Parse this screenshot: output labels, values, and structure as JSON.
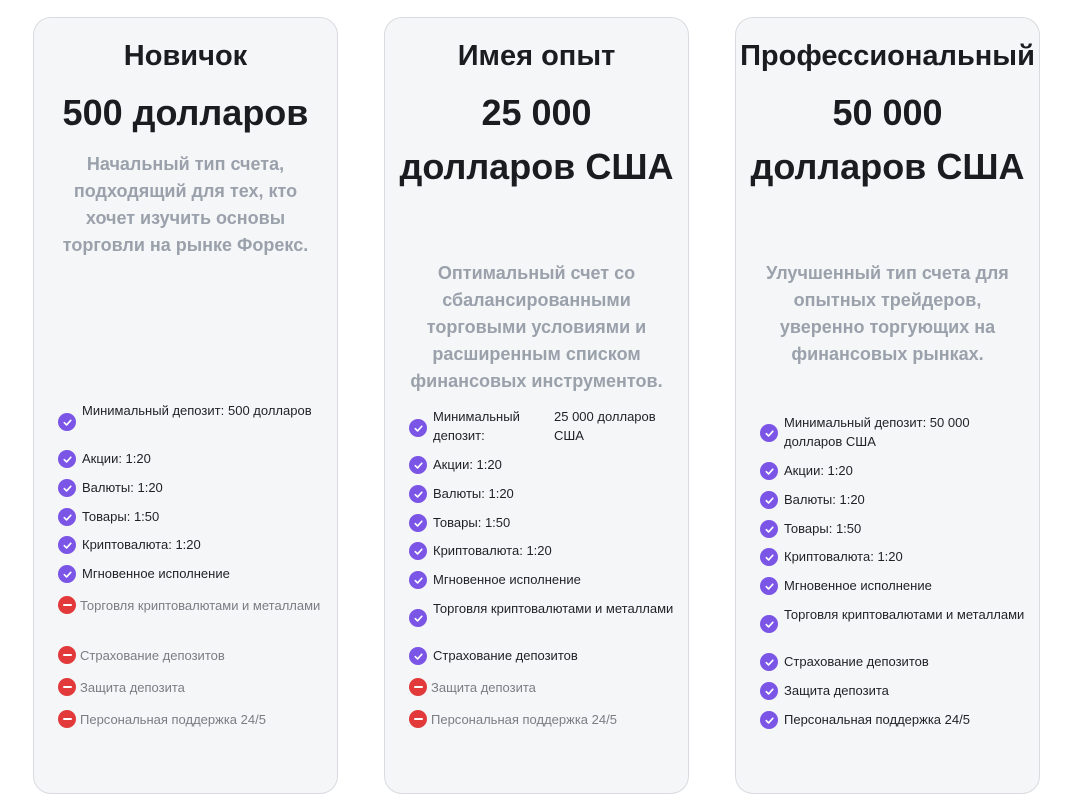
{
  "plans": [
    {
      "title": "Новичок",
      "price": "500 долларов",
      "description": "Начальный тип счета, подходящий для тех, кто хочет изучить основы торговли на рынке Форекс.",
      "min_deposit_label": "Минимальный депозит:",
      "min_deposit_value": "500 долларов",
      "features": [
        {
          "label": "Акции: 1:20",
          "included": true
        },
        {
          "label": "Валюты: 1:20",
          "included": true
        },
        {
          "label": "Товары: 1:50",
          "included": true
        },
        {
          "label": "Криптовалюта: 1:20",
          "included": true
        },
        {
          "label": "Мгновенное исполнение",
          "included": true
        },
        {
          "label": "Торговля криптовалютами и металлами",
          "included": false
        },
        {
          "label": "Страхование депозитов",
          "included": false
        },
        {
          "label": "Защита депозита",
          "included": false
        },
        {
          "label": "Персональная поддержка 24/5",
          "included": false
        }
      ]
    },
    {
      "title": "Имея опыт",
      "price": "25 000 долларов США",
      "description": "Оптимальный счет со сбалансированными торговыми условиями и расширенным списком финансовых инструментов.",
      "min_deposit_label": "Минимальный депозит:",
      "min_deposit_value": "25 000 долларов США",
      "features": [
        {
          "label": "Акции: 1:20",
          "included": true
        },
        {
          "label": "Валюты: 1:20",
          "included": true
        },
        {
          "label": "Товары: 1:50",
          "included": true
        },
        {
          "label": "Криптовалюта: 1:20",
          "included": true
        },
        {
          "label": "Мгновенное исполнение",
          "included": true
        },
        {
          "label": "Торговля криптовалютами и металлами",
          "included": true
        },
        {
          "label": "Страхование депозитов",
          "included": true
        },
        {
          "label": "Защита депозита",
          "included": false
        },
        {
          "label": "Персональная поддержка 24/5",
          "included": false
        }
      ]
    },
    {
      "title": "Профессиональный",
      "price": "50 000 долларов США",
      "description": "Улучшенный тип счета для опытных трейдеров, уверенно торгующих на финансовых рынках.",
      "min_deposit_text": "Минимальный депозит: 50 000 долларов США",
      "features": [
        {
          "label": "Акции: 1:20",
          "included": true
        },
        {
          "label": "Валюты: 1:20",
          "included": true
        },
        {
          "label": "Товары: 1:50",
          "included": true
        },
        {
          "label": "Криптовалюта: 1:20",
          "included": true
        },
        {
          "label": "Мгновенное исполнение",
          "included": true
        },
        {
          "label": "Торговля криптовалютами и металлами",
          "included": true
        },
        {
          "label": "Страхование депозитов",
          "included": true
        },
        {
          "label": "Защита депозита",
          "included": true
        },
        {
          "label": "Персональная поддержка 24/5",
          "included": true
        }
      ]
    }
  ],
  "colors": {
    "check": "#7b55e6",
    "minus": "#e23a3a",
    "description": "#9aa1ab",
    "card_bg": "#f5f6f8"
  }
}
